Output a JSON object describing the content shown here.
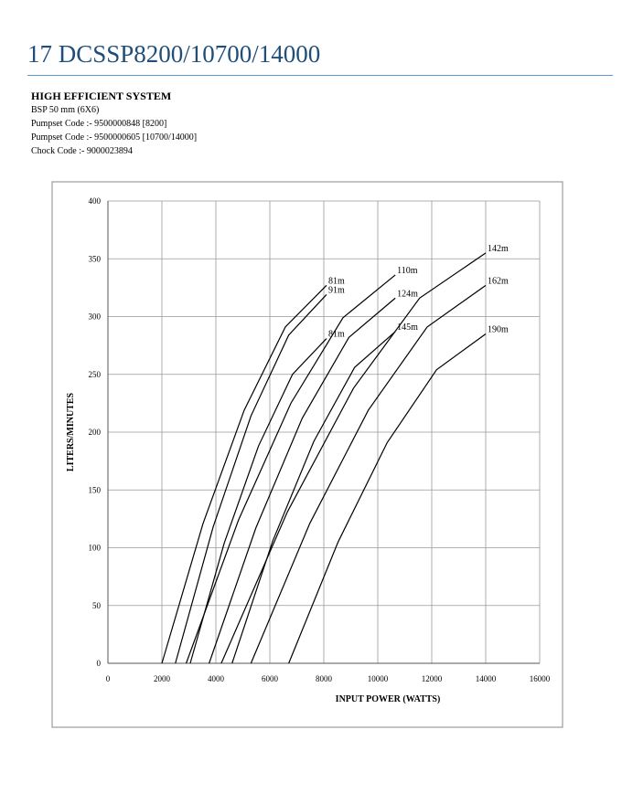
{
  "header": {
    "title": "17 DCSSP8200/10700/14000"
  },
  "info": {
    "heading": "HIGH EFFICIENT SYSTEM",
    "lines": [
      "BSP 50 mm (6X6)",
      "Pumpset Code :- 9500000848 [8200]",
      "Pumpset Code :- 9500000605 [10700/14000]",
      "Chock Code :-  9000023894"
    ]
  },
  "chart_data": {
    "type": "line",
    "xlabel": "INPUT POWER (WATTS)",
    "ylabel": "LITERS/MINUTES",
    "xlim": [
      0,
      16000
    ],
    "xticks": [
      0,
      2000,
      4000,
      6000,
      8000,
      10000,
      12000,
      14000,
      16000
    ],
    "ylim": [
      0,
      400
    ],
    "yticks": [
      0,
      50,
      100,
      150,
      200,
      250,
      300,
      350,
      400
    ],
    "grid": true,
    "series": [
      {
        "name": "81m",
        "color": "#000000",
        "x": [
          2000,
          3525,
          5050,
          6575,
          8100
        ],
        "values": [
          0,
          121,
          219,
          291,
          327
        ]
      },
      {
        "name": "91m",
        "color": "#000000",
        "x": [
          2500,
          3900,
          5300,
          6700,
          8100
        ],
        "values": [
          0,
          118,
          214,
          284,
          319
        ]
      },
      {
        "name": "110m",
        "color": "#000000",
        "x": [
          2900,
          4840,
          6780,
          8710,
          10650
        ],
        "values": [
          0,
          124,
          225,
          299,
          336
        ]
      },
      {
        "name": "81m",
        "color": "#000000",
        "x": [
          3050,
          4310,
          5580,
          6840,
          8100
        ],
        "values": [
          0,
          104,
          188,
          250,
          281
        ]
      },
      {
        "name": "124m",
        "color": "#000000",
        "x": [
          3750,
          5480,
          7200,
          8930,
          10650
        ],
        "values": [
          0,
          117,
          212,
          282,
          316
        ]
      },
      {
        "name": "142m",
        "color": "#000000",
        "x": [
          4200,
          6650,
          9100,
          11550,
          14000
        ],
        "values": [
          0,
          131,
          238,
          316,
          355
        ]
      },
      {
        "name": "145m",
        "color": "#000000",
        "x": [
          4600,
          6110,
          7630,
          9140,
          10650
        ],
        "values": [
          0,
          106,
          192,
          256,
          287
        ]
      },
      {
        "name": "162m",
        "color": "#000000",
        "x": [
          5300,
          7480,
          9650,
          11830,
          14000
        ],
        "values": [
          0,
          121,
          219,
          291,
          327
        ]
      },
      {
        "name": "190m",
        "color": "#000000",
        "x": [
          6700,
          8530,
          10350,
          12180,
          14000
        ],
        "values": [
          0,
          105,
          191,
          254,
          285
        ]
      }
    ]
  }
}
